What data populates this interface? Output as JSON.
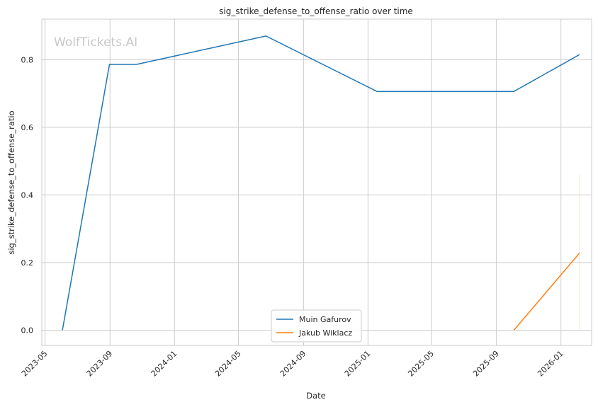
{
  "chart_data": {
    "type": "line",
    "title": "sig_strike_defense_to_offense_ratio over time",
    "xlabel": "Date",
    "ylabel": "sig_strike_defense_to_offense_ratio",
    "watermark": "WolfTickets.AI",
    "x_tick_labels": [
      "2023-05",
      "2023-09",
      "2024-01",
      "2024-05",
      "2024-09",
      "2025-01",
      "2025-05",
      "2025-09",
      "2026-01"
    ],
    "x_ticks": [
      "2023-05-01",
      "2023-09-01",
      "2024-01-01",
      "2024-05-01",
      "2024-09-01",
      "2025-01-01",
      "2025-05-01",
      "2025-09-01",
      "2026-01-01"
    ],
    "y_ticks": [
      0.0,
      0.2,
      0.4,
      0.6,
      0.8
    ],
    "y_tick_labels": [
      "0.0",
      "0.2",
      "0.4",
      "0.6",
      "0.8"
    ],
    "xlim": [
      "2023-04-25",
      "2026-02-28"
    ],
    "ylim": [
      -0.045,
      0.92
    ],
    "grid": true,
    "legend_position": "bottom-center",
    "series": [
      {
        "name": "Muin Gafurov",
        "color": "#1f77b4",
        "points": [
          {
            "x": "2023-06-03",
            "y": 0.0
          },
          {
            "x": "2023-08-31",
            "y": 0.786
          },
          {
            "x": "2023-10-21",
            "y": 0.786
          },
          {
            "x": "2024-06-22",
            "y": 0.87
          },
          {
            "x": "2025-01-18",
            "y": 0.706
          },
          {
            "x": "2025-10-04",
            "y": 0.706
          },
          {
            "x": "2026-02-05",
            "y": 0.815
          }
        ]
      },
      {
        "name": "Jakub Wiklacz",
        "color": "#ff7f0e",
        "points": [
          {
            "x": "2025-10-04",
            "y": 0.0
          },
          {
            "x": "2026-02-05",
            "y": 0.228
          }
        ],
        "band": {
          "x": "2026-02-05",
          "low": 0.0,
          "high": 0.46
        }
      }
    ]
  }
}
